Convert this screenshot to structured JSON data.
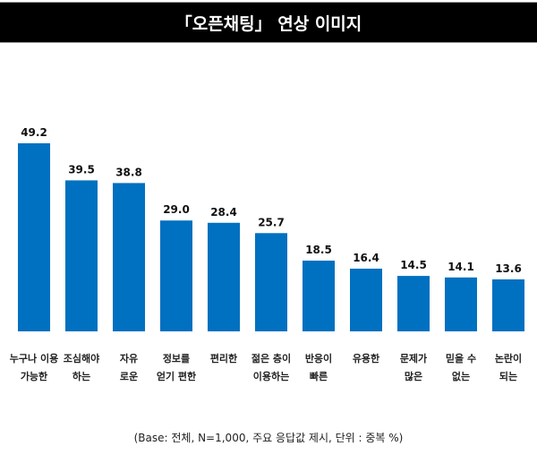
{
  "chart_data": {
    "type": "bar",
    "title": "「오픈채팅」 연상 이미지",
    "categories": [
      [
        "누구나 이용",
        "가능한"
      ],
      [
        "조심해야",
        "하는"
      ],
      [
        "자유",
        "로운"
      ],
      [
        "정보를",
        "얻기 편한"
      ],
      [
        "편리한"
      ],
      [
        "젊은 층이",
        "이용하는"
      ],
      [
        "반응이",
        "빠른"
      ],
      [
        "유용한"
      ],
      [
        "문제가",
        "많은"
      ],
      [
        "믿을 수",
        "없는"
      ],
      [
        "논란이",
        "되는"
      ]
    ],
    "values": [
      49.2,
      39.5,
      38.8,
      29.0,
      28.4,
      25.7,
      18.5,
      16.4,
      14.5,
      14.1,
      13.6
    ],
    "value_labels": [
      "49.2",
      "39.5",
      "38.8",
      "29.0",
      "28.4",
      "25.7",
      "18.5",
      "16.4",
      "14.5",
      "14.1",
      "13.6"
    ],
    "note": "(Base: 전체, N=1,000, 주요 응답값 제시, 단위 : 중복 %)",
    "ylim": [
      0,
      50
    ],
    "grid": false,
    "bar_color": "#0070C0"
  }
}
